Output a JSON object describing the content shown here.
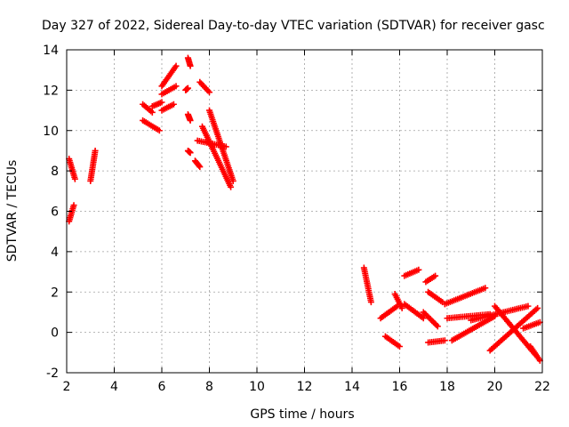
{
  "chart_data": {
    "type": "scatter",
    "title": "Day 327 of 2022, Sidereal Day-to-day VTEC variation (SDTVAR) for receiver gasc",
    "xlabel": "GPS time / hours",
    "ylabel": "SDTVAR / TECUs",
    "xlim": [
      2,
      22
    ],
    "ylim": [
      -2,
      14
    ],
    "xticks": [
      "2",
      "4",
      "6",
      "8",
      "10",
      "12",
      "14",
      "16",
      "18",
      "20",
      "22"
    ],
    "yticks": [
      "-2",
      "0",
      "2",
      "4",
      "6",
      "8",
      "10",
      "12",
      "14"
    ],
    "grid": true,
    "marker": "+",
    "color": "#ff0000",
    "segments": [
      {
        "x": [
          2.1,
          2.35
        ],
        "y": [
          8.6,
          7.6
        ]
      },
      {
        "x": [
          2.1,
          2.3
        ],
        "y": [
          5.5,
          6.3
        ]
      },
      {
        "x": [
          3.0,
          3.2
        ],
        "y": [
          7.5,
          9.0
        ]
      },
      {
        "x": [
          5.2,
          5.6
        ],
        "y": [
          11.3,
          10.9
        ]
      },
      {
        "x": [
          5.2,
          5.9
        ],
        "y": [
          10.5,
          10.0
        ]
      },
      {
        "x": [
          5.6,
          6.0
        ],
        "y": [
          11.2,
          11.4
        ]
      },
      {
        "x": [
          6.0,
          6.6
        ],
        "y": [
          12.2,
          13.2
        ]
      },
      {
        "x": [
          6.0,
          6.5
        ],
        "y": [
          11.0,
          11.3
        ]
      },
      {
        "x": [
          6.0,
          6.6
        ],
        "y": [
          11.8,
          12.2
        ]
      },
      {
        "x": [
          7.1,
          7.2
        ],
        "y": [
          13.6,
          13.2
        ]
      },
      {
        "x": [
          7.0,
          7.1
        ],
        "y": [
          12.0,
          12.1
        ]
      },
      {
        "x": [
          7.1,
          7.2
        ],
        "y": [
          10.8,
          10.5
        ]
      },
      {
        "x": [
          7.1,
          7.2
        ],
        "y": [
          9.0,
          8.9
        ]
      },
      {
        "x": [
          7.6,
          8.0
        ],
        "y": [
          12.4,
          11.9
        ]
      },
      {
        "x": [
          7.7,
          8.9
        ],
        "y": [
          10.2,
          7.2
        ]
      },
      {
        "x": [
          8.0,
          9.0
        ],
        "y": [
          11.0,
          7.5
        ]
      },
      {
        "x": [
          7.5,
          8.7
        ],
        "y": [
          9.5,
          9.2
        ]
      },
      {
        "x": [
          7.4,
          7.6
        ],
        "y": [
          8.5,
          8.2
        ]
      },
      {
        "x": [
          14.5,
          14.8
        ],
        "y": [
          3.2,
          1.5
        ]
      },
      {
        "x": [
          15.2,
          15.9
        ],
        "y": [
          0.7,
          1.3
        ]
      },
      {
        "x": [
          15.8,
          16.1
        ],
        "y": [
          1.9,
          1.2
        ]
      },
      {
        "x": [
          15.4,
          16.0
        ],
        "y": [
          -0.2,
          -0.7
        ]
      },
      {
        "x": [
          16.2,
          16.8
        ],
        "y": [
          2.8,
          3.1
        ]
      },
      {
        "x": [
          16.2,
          17.0
        ],
        "y": [
          1.4,
          0.7
        ]
      },
      {
        "x": [
          17.1,
          17.5
        ],
        "y": [
          2.5,
          2.8
        ]
      },
      {
        "x": [
          17.2,
          17.8
        ],
        "y": [
          2.0,
          1.5
        ]
      },
      {
        "x": [
          17.0,
          17.6
        ],
        "y": [
          1.0,
          0.3
        ]
      },
      {
        "x": [
          17.2,
          17.9
        ],
        "y": [
          -0.5,
          -0.4
        ]
      },
      {
        "x": [
          17.9,
          19.6
        ],
        "y": [
          1.4,
          2.2
        ]
      },
      {
        "x": [
          18.0,
          19.8
        ],
        "y": [
          0.7,
          0.9
        ]
      },
      {
        "x": [
          18.2,
          20.0
        ],
        "y": [
          -0.4,
          0.8
        ]
      },
      {
        "x": [
          19.0,
          21.4
        ],
        "y": [
          0.6,
          1.3
        ]
      },
      {
        "x": [
          19.8,
          21.8
        ],
        "y": [
          -0.9,
          1.2
        ]
      },
      {
        "x": [
          20.0,
          21.7
        ],
        "y": [
          1.3,
          -1.1
        ]
      },
      {
        "x": [
          21.2,
          21.9
        ],
        "y": [
          0.2,
          0.5
        ]
      },
      {
        "x": [
          21.5,
          21.9
        ],
        "y": [
          -0.7,
          -1.4
        ]
      }
    ]
  }
}
